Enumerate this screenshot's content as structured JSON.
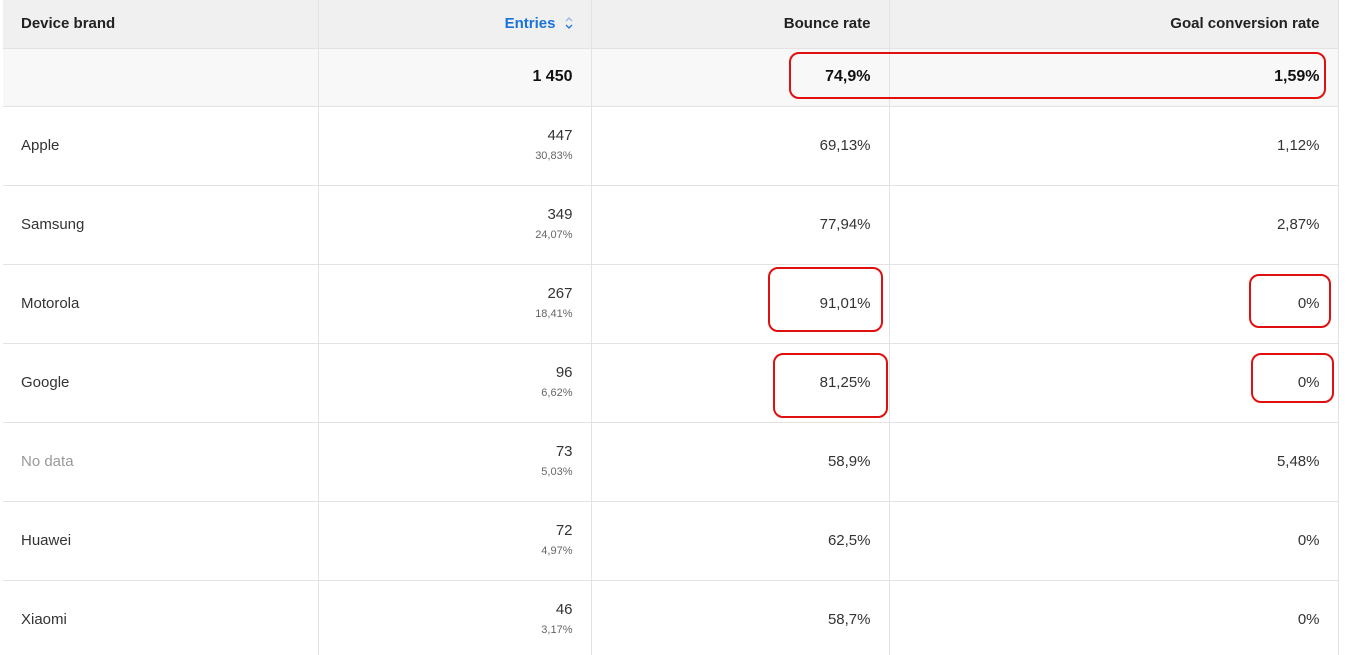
{
  "columns": {
    "device_brand": "Device brand",
    "entries": "Entries",
    "bounce_rate": "Bounce rate",
    "goal_conversion_rate": "Goal conversion rate",
    "sort_icon": "sort-desc-icon",
    "sort_color": "#1a73d9"
  },
  "totals": {
    "entries": "1 450",
    "bounce_rate": "74,9%",
    "goal_conversion_rate": "1,59%"
  },
  "rows": [
    {
      "brand": "Apple",
      "entries": "447",
      "share": "30,83%",
      "bounce_rate": "69,13%",
      "goal_conversion_rate": "1,12%"
    },
    {
      "brand": "Samsung",
      "entries": "349",
      "share": "24,07%",
      "bounce_rate": "77,94%",
      "goal_conversion_rate": "2,87%"
    },
    {
      "brand": "Motorola",
      "entries": "267",
      "share": "18,41%",
      "bounce_rate": "91,01%",
      "goal_conversion_rate": "0%"
    },
    {
      "brand": "Google",
      "entries": "96",
      "share": "6,62%",
      "bounce_rate": "81,25%",
      "goal_conversion_rate": "0%"
    },
    {
      "brand": "No data",
      "entries": "73",
      "share": "5,03%",
      "bounce_rate": "58,9%",
      "goal_conversion_rate": "5,48%"
    },
    {
      "brand": "Huawei",
      "entries": "72",
      "share": "4,97%",
      "bounce_rate": "62,5%",
      "goal_conversion_rate": "0%"
    },
    {
      "brand": "Xiaomi",
      "entries": "46",
      "share": "3,17%",
      "bounce_rate": "58,7%",
      "goal_conversion_rate": "0%"
    }
  ],
  "annotation_color": "#e01010"
}
